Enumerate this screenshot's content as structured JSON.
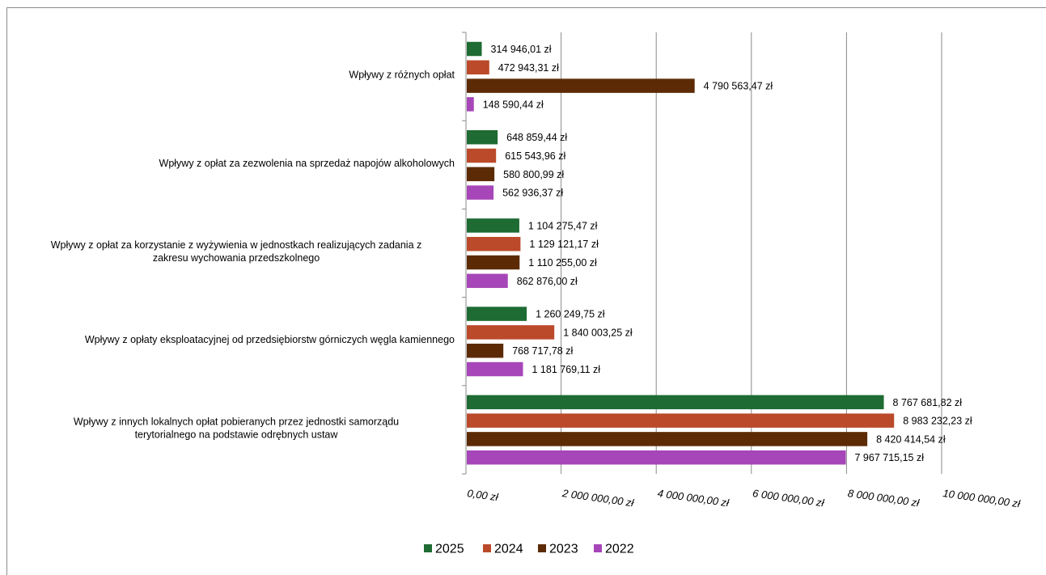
{
  "chart_data": {
    "type": "bar",
    "orientation": "horizontal",
    "categories": [
      [
        "Wpływy z różnych opłat"
      ],
      [
        "Wpływy z opłat za zezwolenia na sprzedaż napojów alkoholowych"
      ],
      [
        "Wpływy z opłat za korzystanie z wyżywienia w jednostkach realizujących zadania z",
        "zakresu wychowania przedszkolnego"
      ],
      [
        "Wpływy z opłaty eksploatacyjnej od przedsiębiorstw górniczych węgla kamiennego"
      ],
      [
        "Wpływy z innych lokalnych opłat pobieranych przez jednostki samorządu",
        "terytorialnego na podstawie odrębnych ustaw"
      ]
    ],
    "series": [
      {
        "name": "2025",
        "color": "#1e6b33",
        "values": [
          314946.01,
          648859.44,
          1104275.47,
          1260249.75,
          8767681.82
        ],
        "labels": [
          "314 946,01 zł",
          "648 859,44 zł",
          "1 104 275,47 zł",
          "1 260 249,75 zł",
          "8 767 681,82 zł"
        ]
      },
      {
        "name": "2024",
        "color": "#bb4a2a",
        "values": [
          472943.31,
          615543.96,
          1129121.17,
          1840003.25,
          8983232.23
        ],
        "labels": [
          "472 943,31 zł",
          "615 543,96 zł",
          "1 129 121,17 zł",
          "1 840 003,25 zł",
          "8 983 232,23 zł"
        ]
      },
      {
        "name": "2023",
        "color": "#5c2b06",
        "values": [
          4790563.47,
          580800.99,
          1110255.0,
          768717.78,
          8420414.54
        ],
        "labels": [
          "4 790 563,47 zł",
          "580 800,99 zł",
          "1 110 255,00 zł",
          "768 717,78 zł",
          "8 420 414,54 zł"
        ]
      },
      {
        "name": "2022",
        "color": "#a646b8",
        "values": [
          148590.44,
          562936.37,
          862876.0,
          1181769.11,
          7967715.15
        ],
        "labels": [
          "148 590,44 zł",
          "562 936,37 zł",
          "862 876,00 zł",
          "1 181 769,11 zł",
          "7 967 715,15 zł"
        ]
      }
    ],
    "x_ticks": [
      0,
      2000000,
      4000000,
      6000000,
      8000000,
      10000000
    ],
    "x_tick_labels": [
      "0,00 zł",
      "2 000 000,00 zł",
      "4 000 000,00 zł",
      "6 000 000,00 zł",
      "8 000 000,00 zł",
      "10 000 000,00 zł"
    ],
    "xlim": [
      0,
      10000000
    ],
    "grid": true,
    "legend_position": "bottom"
  }
}
